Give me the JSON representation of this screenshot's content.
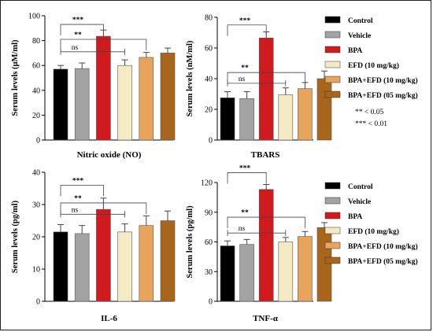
{
  "colors": {
    "Control": "#000000",
    "Vehicle": "#a3a3a3",
    "BPA": "#d11a1e",
    "EFD (10 mg/kg)": "#f4eac4",
    "BPA+EFD (10 mg/kg)": "#e8a45c",
    "BPA+EFD (05 mg/kg)": "#a8651c"
  },
  "legend": {
    "items": [
      "Control",
      "Vehicle",
      "BPA",
      "EFD (10 mg/kg)",
      "BPA+EFD (10 mg/kg)",
      "BPA+EFD (05 mg/kg)"
    ]
  },
  "pvalue_notes": [
    "** < 0.05",
    "*** < 0.01"
  ],
  "chart_data": [
    {
      "type": "bar",
      "xlabel": "Nitric oxide (NO)",
      "ylabel": "Serum levels (µM/ml)",
      "ylim": [
        0,
        100
      ],
      "yticks": [
        0,
        20,
        40,
        60,
        80,
        100
      ],
      "categories": [
        "Control",
        "Vehicle",
        "BPA",
        "EFD (10 mg/kg)",
        "BPA+EFD (10 mg/kg)",
        "BPA+EFD (05 mg/kg)"
      ],
      "values": [
        57,
        57.5,
        83.5,
        60,
        66.5,
        70
      ],
      "errors": [
        3,
        4.5,
        5,
        4.5,
        4,
        4
      ],
      "comparisons": [
        {
          "label": "***",
          "from": 0,
          "to": 2,
          "y": 93
        },
        {
          "label": "**",
          "from": 0,
          "to": 4,
          "y": 81
        },
        {
          "label": "ns",
          "from": 0,
          "to": 3,
          "y": 71
        }
      ]
    },
    {
      "type": "bar",
      "xlabel": "TBARS",
      "ylabel": "Serum levels (nM/ml)",
      "ylim": [
        0,
        80
      ],
      "yticks": [
        0,
        20,
        40,
        60,
        80
      ],
      "categories": [
        "Control",
        "Vehicle",
        "BPA",
        "EFD (10 mg/kg)",
        "BPA+EFD (10 mg/kg)",
        "BPA+EFD (05 mg/kg)"
      ],
      "values": [
        27.5,
        27,
        66.5,
        29.5,
        33.5,
        40
      ],
      "errors": [
        4,
        4.5,
        4,
        4.5,
        4,
        5
      ],
      "comparisons": [
        {
          "label": "***",
          "from": 0,
          "to": 2,
          "y": 75
        },
        {
          "label": "**",
          "from": 0,
          "to": 4,
          "y": 44
        },
        {
          "label": "ns",
          "from": 0,
          "to": 3,
          "y": 37
        }
      ]
    },
    {
      "type": "bar",
      "xlabel": "IL-6",
      "ylabel": "Serum levels (pg/ml)",
      "ylim": [
        0,
        40
      ],
      "yticks": [
        0,
        10,
        20,
        30,
        40
      ],
      "categories": [
        "Control",
        "Vehicle",
        "BPA",
        "EFD (10 mg/kg)",
        "BPA+EFD (10 mg/kg)",
        "BPA+EFD (05 mg/kg)"
      ],
      "values": [
        21.5,
        21,
        28.5,
        21.5,
        23.5,
        25
      ],
      "errors": [
        2.3,
        2.5,
        3.5,
        2.5,
        3,
        3
      ],
      "comparisons": [
        {
          "label": "***",
          "from": 0,
          "to": 2,
          "y": 36
        },
        {
          "label": "**",
          "from": 0,
          "to": 4,
          "y": 30.5
        },
        {
          "label": "ns",
          "from": 0,
          "to": 3,
          "y": 27
        }
      ]
    },
    {
      "type": "bar",
      "xlabel": "TNF-α",
      "ylabel": "Serum levels (pg/ml)",
      "ylim": [
        0,
        120
      ],
      "yticks": [
        0,
        30,
        60,
        90,
        120
      ],
      "categories": [
        "Control",
        "Vehicle",
        "BPA",
        "EFD (10 mg/kg)",
        "BPA+EFD (10 mg/kg)",
        "BPA+EFD (05 mg/kg)"
      ],
      "values": [
        56,
        57.5,
        113,
        60,
        65.5,
        74.5
      ],
      "errors": [
        5,
        5,
        5,
        4.5,
        5,
        5
      ],
      "comparisons": [
        {
          "label": "***",
          "from": 0,
          "to": 2,
          "y": 130
        },
        {
          "label": "**",
          "from": 0,
          "to": 4,
          "y": 85
        },
        {
          "label": "ns",
          "from": 0,
          "to": 3,
          "y": 69
        }
      ]
    }
  ]
}
